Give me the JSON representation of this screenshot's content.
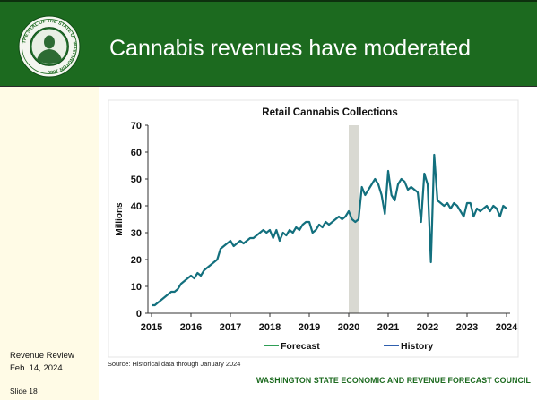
{
  "slide": {
    "title": "Cannabis revenues have moderated",
    "seal_text": "THE SEAL OF THE STATE OF WASHINGTON 1889"
  },
  "sidebar": {
    "report": "Revenue Review",
    "date": "Feb. 14, 2024",
    "slide_number": "Slide 18"
  },
  "source_note": "Source: Historical data through January 2024",
  "footer": "WASHINGTON STATE ECONOMIC AND REVENUE FORECAST COUNCIL",
  "colors": {
    "header": "#1c6a1f",
    "sidebar": "#fffbe6",
    "footer_text": "#1c6a1f",
    "band": "#d9d9d2"
  },
  "chart_data": {
    "type": "line",
    "title": "Retail Cannabis Collections",
    "xlabel": "",
    "ylabel": "Millions",
    "ylim": [
      0,
      70
    ],
    "yticks": [
      0,
      10,
      20,
      30,
      40,
      50,
      60,
      70
    ],
    "xlim": [
      "2015-01",
      "2024-01"
    ],
    "xticks": [
      "2015",
      "2016",
      "2017",
      "2018",
      "2019",
      "2020",
      "2021",
      "2022",
      "2023",
      "2024"
    ],
    "grid": false,
    "highlight_band": [
      "2020-01",
      "2020-04"
    ],
    "legend": {
      "position": "bottom",
      "entries": [
        {
          "label": "Forecast",
          "color": "#2e9e55"
        },
        {
          "label": "History",
          "color": "#2f5fae"
        }
      ]
    },
    "series": [
      {
        "name": "History",
        "color": "#13707e",
        "x": [
          "2015-01",
          "2015-02",
          "2015-03",
          "2015-04",
          "2015-05",
          "2015-06",
          "2015-07",
          "2015-08",
          "2015-09",
          "2015-10",
          "2015-11",
          "2015-12",
          "2016-01",
          "2016-02",
          "2016-03",
          "2016-04",
          "2016-05",
          "2016-06",
          "2016-07",
          "2016-08",
          "2016-09",
          "2016-10",
          "2016-11",
          "2016-12",
          "2017-01",
          "2017-02",
          "2017-03",
          "2017-04",
          "2017-05",
          "2017-06",
          "2017-07",
          "2017-08",
          "2017-09",
          "2017-10",
          "2017-11",
          "2017-12",
          "2018-01",
          "2018-02",
          "2018-03",
          "2018-04",
          "2018-05",
          "2018-06",
          "2018-07",
          "2018-08",
          "2018-09",
          "2018-10",
          "2018-11",
          "2018-12",
          "2019-01",
          "2019-02",
          "2019-03",
          "2019-04",
          "2019-05",
          "2019-06",
          "2019-07",
          "2019-08",
          "2019-09",
          "2019-10",
          "2019-11",
          "2019-12",
          "2020-01",
          "2020-02",
          "2020-03",
          "2020-04",
          "2020-05",
          "2020-06",
          "2020-07",
          "2020-08",
          "2020-09",
          "2020-10",
          "2020-11",
          "2020-12",
          "2021-01",
          "2021-02",
          "2021-03",
          "2021-04",
          "2021-05",
          "2021-06",
          "2021-07",
          "2021-08",
          "2021-09",
          "2021-10",
          "2021-11",
          "2021-12",
          "2022-01",
          "2022-02",
          "2022-03",
          "2022-04",
          "2022-05",
          "2022-06",
          "2022-07",
          "2022-08",
          "2022-09",
          "2022-10",
          "2022-11",
          "2022-12",
          "2023-01",
          "2023-02",
          "2023-03",
          "2023-04",
          "2023-05",
          "2023-06",
          "2023-07",
          "2023-08",
          "2023-09",
          "2023-10",
          "2023-11",
          "2023-12",
          "2024-01"
        ],
        "values": [
          3,
          3,
          4,
          5,
          6,
          7,
          8,
          8,
          9,
          11,
          12,
          13,
          14,
          13,
          15,
          14,
          16,
          17,
          18,
          19,
          20,
          24,
          25,
          26,
          27,
          25,
          26,
          27,
          26,
          27,
          28,
          28,
          29,
          30,
          31,
          30,
          31,
          28,
          31,
          27,
          30,
          29,
          31,
          30,
          32,
          31,
          33,
          34,
          34,
          30,
          31,
          33,
          32,
          34,
          33,
          34,
          35,
          36,
          35,
          36,
          38,
          35,
          34,
          35,
          47,
          44,
          46,
          48,
          50,
          48,
          44,
          37,
          53,
          44,
          42,
          48,
          50,
          49,
          46,
          47,
          46,
          45,
          34,
          52,
          48,
          19,
          59,
          42,
          41,
          40,
          41,
          39,
          41,
          40,
          38,
          36,
          41,
          41,
          36,
          39,
          38,
          39,
          40,
          38,
          40,
          39,
          36,
          40,
          39
        ]
      }
    ]
  }
}
